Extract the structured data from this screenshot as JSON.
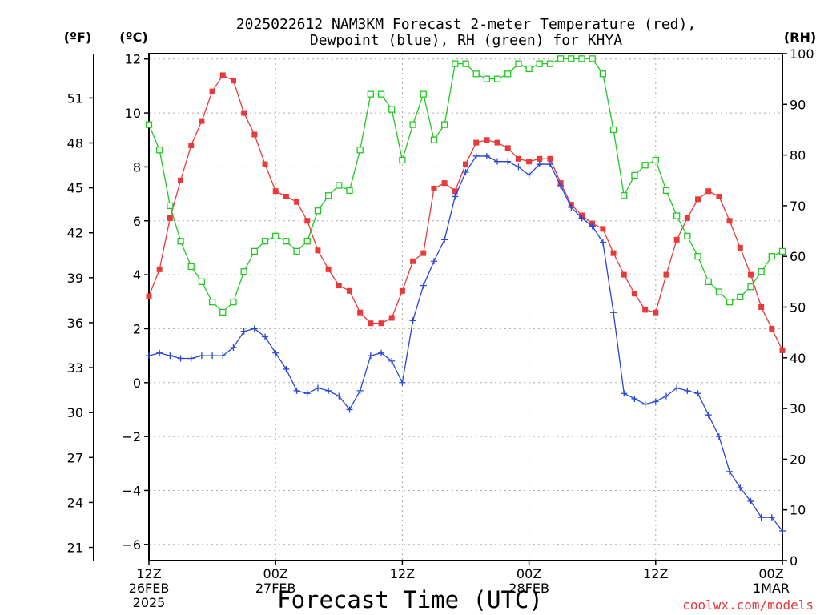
{
  "chart_data": {
    "type": "line",
    "title_line1": "2025022612 NAM3KM Forecast 2-meter Temperature (red),",
    "title_line2": "Dewpoint (blue), RH (green) for KHYA",
    "xlabel": "Forecast Time (UTC)",
    "credit": "coolwx.com/models",
    "units": {
      "fahrenheit": "(ºF)",
      "celsius": "(ºC)",
      "rh": "(RH)"
    },
    "x_hours_range": [
      0,
      60
    ],
    "y_celsius_range": [
      -6.6,
      12.2
    ],
    "y_rh_range": [
      0,
      100
    ],
    "x_ticks": [
      {
        "hour": 0,
        "line1": "12Z",
        "line2": "26FEB",
        "line3": "2025"
      },
      {
        "hour": 12,
        "line1": "00Z",
        "line2": "27FEB",
        "line3": ""
      },
      {
        "hour": 24,
        "line1": "12Z",
        "line2": "",
        "line3": ""
      },
      {
        "hour": 36,
        "line1": "00Z",
        "line2": "28FEB",
        "line3": ""
      },
      {
        "hour": 48,
        "line1": "12Z",
        "line2": "",
        "line3": ""
      },
      {
        "hour": 60,
        "line1": "00Z",
        "line2": "1MAR",
        "line3": ""
      }
    ],
    "y_celsius_ticks": [
      -6,
      -4,
      -2,
      0,
      2,
      4,
      6,
      8,
      10,
      12
    ],
    "y_fahrenheit_ticks": [
      21,
      24,
      27,
      30,
      33,
      36,
      39,
      42,
      45,
      48,
      51
    ],
    "y_rh_ticks": [
      0,
      10,
      20,
      30,
      40,
      50,
      60,
      70,
      80,
      90,
      100
    ],
    "grid": true,
    "colors": {
      "temperature": "#e83a3a",
      "dewpoint": "#2845d8",
      "rh": "#22c822"
    },
    "series": [
      {
        "name": "Temperature",
        "axis": "celsius",
        "marker": "filled-square",
        "values": [
          3.2,
          4.2,
          6.1,
          7.5,
          8.8,
          9.7,
          10.8,
          11.4,
          11.2,
          10.0,
          9.2,
          8.1,
          7.1,
          6.9,
          6.7,
          6.0,
          4.9,
          4.2,
          3.6,
          3.4,
          2.6,
          2.2,
          2.2,
          2.4,
          3.4,
          4.5,
          4.8,
          7.2,
          7.4,
          7.1,
          8.1,
          8.9,
          9.0,
          8.9,
          8.7,
          8.3,
          8.2,
          8.3,
          8.3,
          7.4,
          6.6,
          6.2,
          5.9,
          5.7,
          4.8,
          4.0,
          3.3,
          2.7,
          2.6,
          4.0,
          5.3,
          6.1,
          6.8,
          7.1,
          6.9,
          6.0,
          5.0,
          4.0,
          2.8,
          2.0,
          1.2
        ]
      },
      {
        "name": "Dewpoint",
        "axis": "celsius",
        "marker": "plus",
        "values": [
          1.0,
          1.1,
          1.0,
          0.9,
          0.9,
          1.0,
          1.0,
          1.0,
          1.3,
          1.9,
          2.0,
          1.7,
          1.1,
          0.5,
          -0.3,
          -0.4,
          -0.2,
          -0.3,
          -0.5,
          -1.0,
          -0.3,
          1.0,
          1.1,
          0.8,
          0.0,
          2.3,
          3.6,
          4.5,
          5.3,
          6.9,
          7.8,
          8.4,
          8.4,
          8.2,
          8.2,
          8.0,
          7.7,
          8.1,
          8.1,
          7.3,
          6.5,
          6.1,
          5.8,
          5.2,
          2.6,
          -0.4,
          -0.6,
          -0.8,
          -0.7,
          -0.5,
          -0.2,
          -0.3,
          -0.4,
          -1.2,
          -2.0,
          -3.3,
          -3.9,
          -4.4,
          -5.0,
          -5.0,
          -5.5
        ]
      },
      {
        "name": "RH",
        "axis": "rh",
        "marker": "open-square",
        "values": [
          86,
          81,
          70,
          63,
          58,
          55,
          51,
          49,
          51,
          57,
          61,
          63,
          64,
          63,
          61,
          63,
          69,
          72,
          74,
          73,
          81,
          92,
          92,
          89,
          79,
          86,
          92,
          83,
          86,
          98,
          98,
          96,
          95,
          95,
          96,
          98,
          97,
          98,
          98,
          99,
          99,
          99,
          99,
          96,
          85,
          72,
          76,
          78,
          79,
          73,
          68,
          64,
          60,
          55,
          53,
          51,
          52,
          54,
          57,
          60,
          61
        ]
      }
    ]
  }
}
